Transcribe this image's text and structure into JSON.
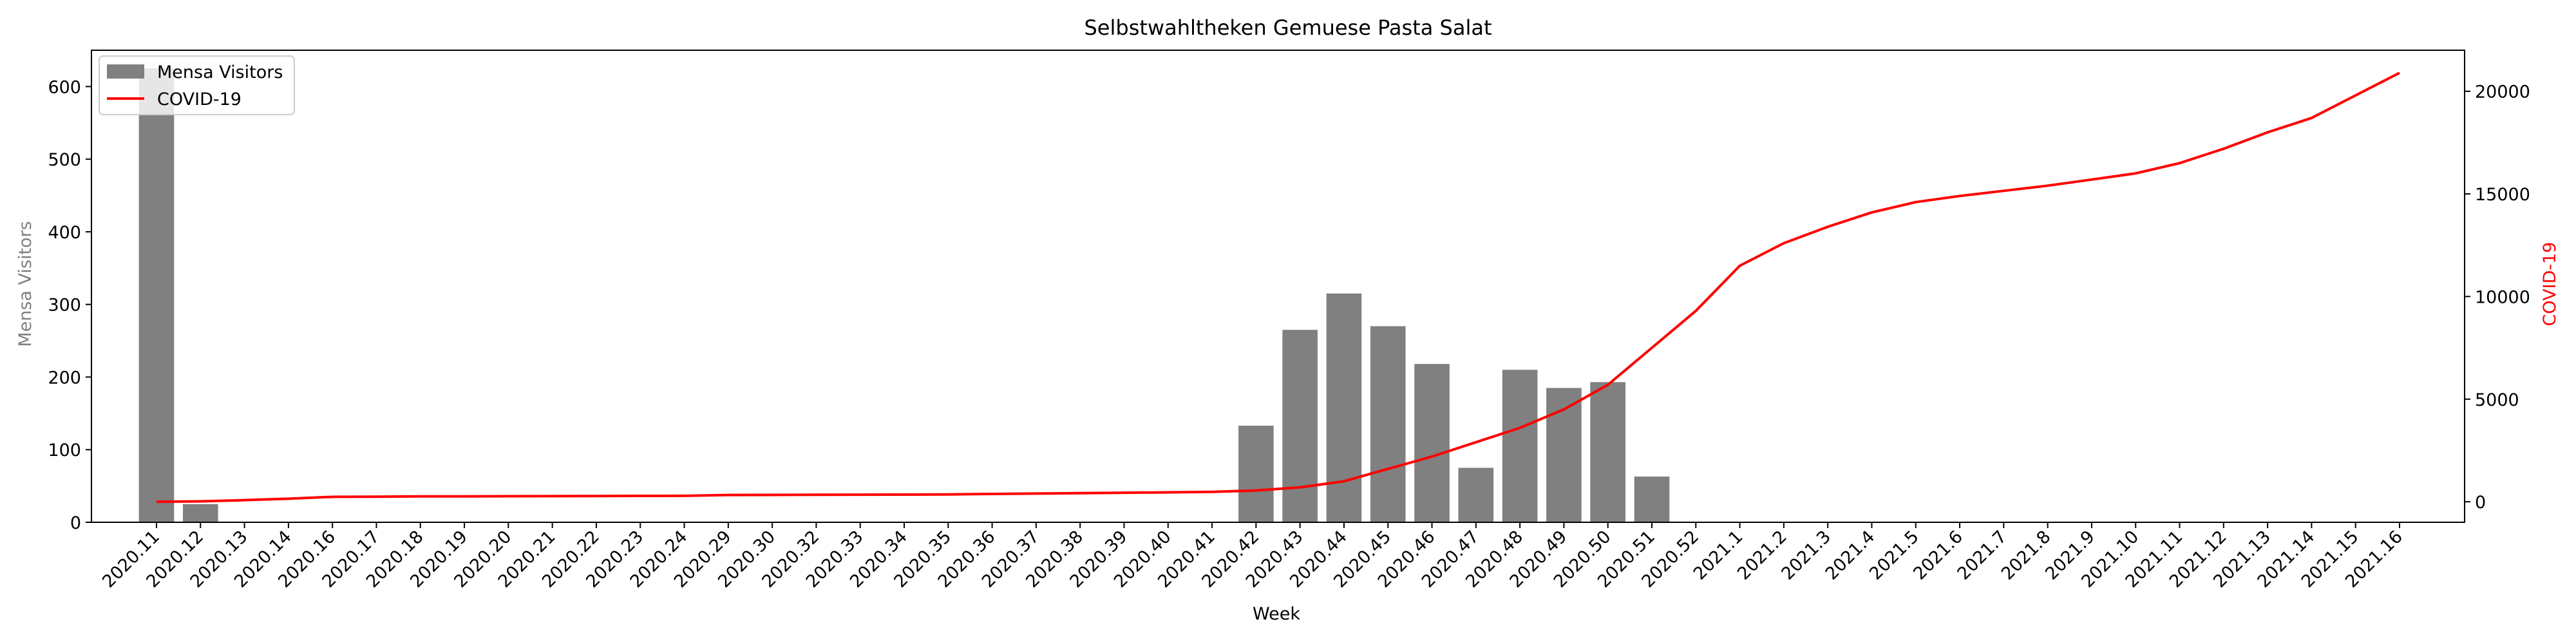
{
  "chart_data": {
    "type": "bar",
    "title": "Selbstwahltheken Gemuese Pasta Salat",
    "xlabel": "Week",
    "ylabel": "Mensa Visitors",
    "ylabel_right": "COVID-19",
    "legend_position": "top-left",
    "grid": false,
    "colors": {
      "bars": "#808080",
      "line": "#ff0000",
      "left_axis_label": "#808080",
      "right_axis_label": "#ff0000",
      "axes": "#000000"
    },
    "ylim": [
      0,
      650
    ],
    "ylim_right": [
      -1000,
      22000
    ],
    "yticks": [
      0,
      100,
      200,
      300,
      400,
      500,
      600
    ],
    "yticks_right": [
      0,
      5000,
      10000,
      15000,
      20000
    ],
    "categories": [
      "2020.11",
      "2020.12",
      "2020.13",
      "2020.14",
      "2020.16",
      "2020.17",
      "2020.18",
      "2020.19",
      "2020.20",
      "2020.21",
      "2020.22",
      "2020.23",
      "2020.24",
      "2020.29",
      "2020.30",
      "2020.32",
      "2020.33",
      "2020.34",
      "2020.35",
      "2020.36",
      "2020.37",
      "2020.38",
      "2020.39",
      "2020.40",
      "2020.41",
      "2020.42",
      "2020.43",
      "2020.44",
      "2020.45",
      "2020.46",
      "2020.47",
      "2020.48",
      "2020.49",
      "2020.50",
      "2020.51",
      "2020.52",
      "2021.1",
      "2021.2",
      "2021.3",
      "2021.4",
      "2021.5",
      "2021.6",
      "2021.7",
      "2021.8",
      "2021.9",
      "2021.10",
      "2021.11",
      "2021.12",
      "2021.13",
      "2021.14",
      "2021.15",
      "2021.16"
    ],
    "series": [
      {
        "name": "Mensa Visitors",
        "type": "bar",
        "axis": "left",
        "values": [
          625,
          25,
          0,
          0,
          0,
          0,
          0,
          0,
          0,
          0,
          0,
          0,
          0,
          0,
          0,
          0,
          0,
          0,
          0,
          0,
          0,
          0,
          0,
          0,
          0,
          133,
          265,
          315,
          270,
          218,
          75,
          210,
          185,
          193,
          63,
          0,
          0,
          0,
          0,
          0,
          0,
          0,
          0,
          0,
          0,
          0,
          0,
          0,
          0,
          0,
          0,
          0
        ]
      },
      {
        "name": "COVID-19",
        "type": "line",
        "axis": "right",
        "values": [
          0,
          20,
          80,
          150,
          240,
          250,
          260,
          265,
          270,
          275,
          280,
          285,
          290,
          330,
          335,
          340,
          345,
          350,
          360,
          380,
          400,
          420,
          440,
          460,
          480,
          550,
          700,
          1000,
          1600,
          2200,
          2900,
          3600,
          4500,
          5700,
          7500,
          9300,
          11500,
          12600,
          13400,
          14100,
          14600,
          14900,
          15150,
          15400,
          15700,
          16000,
          16500,
          17200,
          18000,
          18700,
          19800,
          20900
        ]
      }
    ]
  }
}
